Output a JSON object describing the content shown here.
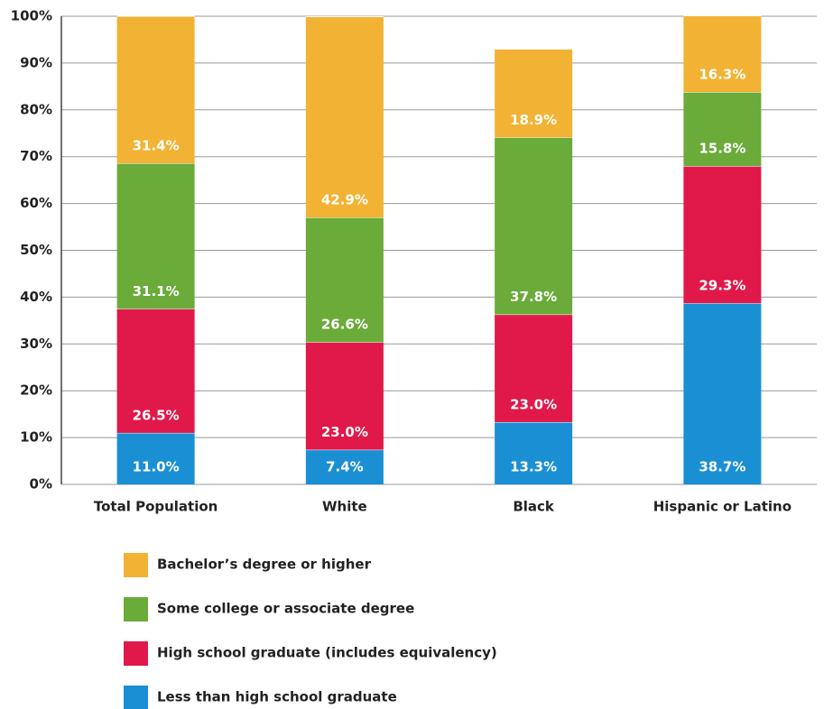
{
  "chart_data": {
    "type": "stacked_bar",
    "categories": [
      "Total Population",
      "White",
      "Black",
      "Hispanic or Latino"
    ],
    "series": [
      {
        "name": "Less than high school graduate",
        "color": "#1b8fd4",
        "values": [
          11.0,
          7.4,
          13.3,
          38.7
        ],
        "value_labels": [
          "11.0%",
          "7.4%",
          "13.3%",
          "38.7%"
        ]
      },
      {
        "name": "High school graduate (includes equivalency)",
        "color": "#e0194a",
        "values": [
          26.5,
          23.0,
          23.0,
          29.3
        ],
        "value_labels": [
          "26.5%",
          "23.0%",
          "23.0%",
          "29.3%"
        ]
      },
      {
        "name": "Some college or associate degree",
        "color": "#6aab3a",
        "values": [
          31.1,
          26.6,
          37.8,
          15.8
        ],
        "value_labels": [
          "31.1%",
          "26.6%",
          "37.8%",
          "15.8%"
        ]
      },
      {
        "name": "Bachelor’s degree or higher",
        "color": "#f2b233",
        "values": [
          31.4,
          42.9,
          18.9,
          16.3
        ],
        "value_labels": [
          "31.4%",
          "42.9%",
          "18.9%",
          "16.3%"
        ]
      }
    ],
    "ylim": [
      0,
      100
    ],
    "yticks": [
      {
        "value": 0,
        "label": "0%"
      },
      {
        "value": 10,
        "label": "10%"
      },
      {
        "value": 20,
        "label": "20%"
      },
      {
        "value": 30,
        "label": "30%"
      },
      {
        "value": 40,
        "label": "40%"
      },
      {
        "value": 50,
        "label": "50%"
      },
      {
        "value": 60,
        "label": "60%"
      },
      {
        "value": 70,
        "label": "70%"
      },
      {
        "value": 80,
        "label": "80%"
      },
      {
        "value": 90,
        "label": "90%"
      },
      {
        "value": 100,
        "label": "100%"
      }
    ],
    "grid": true
  }
}
